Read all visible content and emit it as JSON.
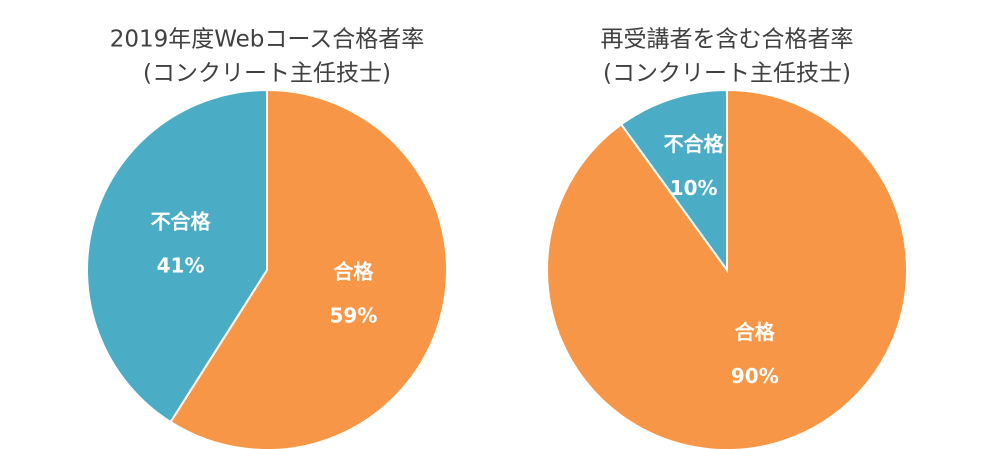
{
  "chart_data": [
    {
      "type": "pie",
      "title": [
        "2019年度Webコース合格者率",
        "(コンクリート主任技士)"
      ],
      "categories": [
        "合格",
        "不合格"
      ],
      "values": [
        59,
        41
      ],
      "value_labels": [
        "59%",
        "41%"
      ],
      "colors": [
        "#f79646",
        "#4bacc6"
      ]
    },
    {
      "type": "pie",
      "title": [
        "再受講者を含む合格者率",
        "(コンクリート主任技士)"
      ],
      "categories": [
        "合格",
        "不合格"
      ],
      "values": [
        90,
        10
      ],
      "value_labels": [
        "90%",
        "10%"
      ],
      "colors": [
        "#f79646",
        "#4bacc6"
      ]
    }
  ]
}
